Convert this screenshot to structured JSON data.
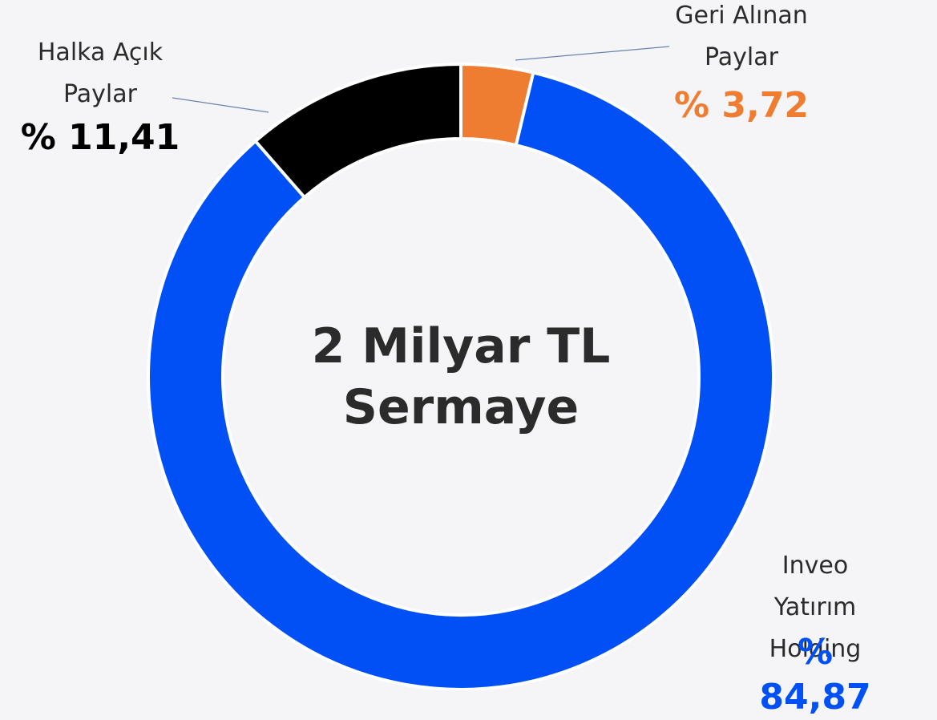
{
  "chart_data": {
    "type": "donut",
    "title": "2 Milyar TL\nSermaye",
    "categories": [
      "Geri Alınan\nPaylar",
      "Inveo\nYatırım Holding",
      "Halka Açık\nPaylar"
    ],
    "values": [
      3.72,
      84.87,
      11.41
    ],
    "value_labels": [
      "% 3,72",
      "% 84,87",
      "% 11,41"
    ],
    "colors": [
      "#ee7d31",
      "#0050f5",
      "#000000"
    ]
  }
}
